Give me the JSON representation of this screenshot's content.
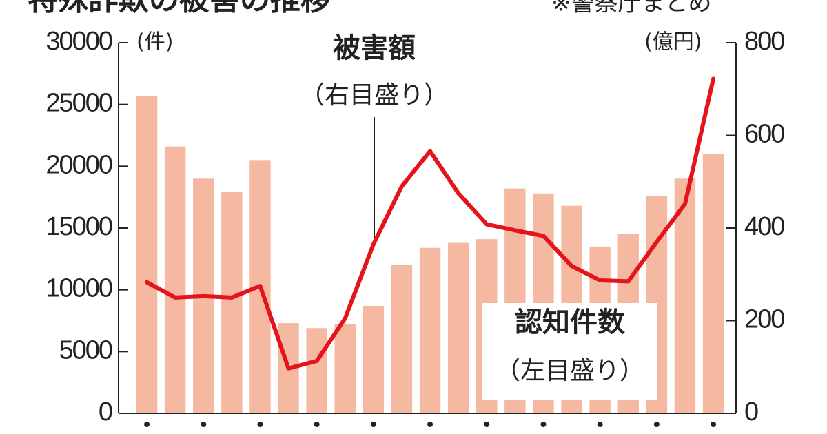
{
  "chart_data": {
    "type": "bar",
    "title": "特殊詐欺の被害の推移",
    "note": "※警察庁まとめ",
    "y_unit": "(件)",
    "y2_unit": "(億円)",
    "categories": [
      null,
      null,
      null,
      null,
      null,
      null,
      null,
      null,
      null,
      null,
      null,
      null,
      null,
      null,
      null,
      null,
      null,
      null,
      null,
      null,
      null
    ],
    "series": [
      {
        "name": "認知件数",
        "type": "bar",
        "color": "#f5b9a1",
        "sublabel": "（左目盛り）",
        "values": [
          25700,
          21600,
          19000,
          17900,
          20500,
          7300,
          6900,
          7200,
          8700,
          12000,
          13400,
          13800,
          14100,
          18200,
          17800,
          16800,
          13500,
          14500,
          17600,
          19000,
          21000
        ]
      },
      {
        "name": "被害額",
        "type": "line",
        "axis": "y2",
        "color": "#e4141c",
        "sublabel": "（右目盛り）",
        "values": [
          283,
          250,
          253,
          250,
          275,
          97,
          113,
          205,
          365,
          490,
          566,
          475,
          408,
          395,
          383,
          318,
          287,
          285,
          370,
          452,
          722
        ]
      }
    ],
    "ylim": [
      0,
      30000
    ],
    "yticks": [
      0,
      5000,
      10000,
      15000,
      20000,
      25000,
      30000
    ],
    "y2lim": [
      0,
      800
    ],
    "y2ticks": [
      0,
      200,
      400,
      600,
      800
    ]
  }
}
